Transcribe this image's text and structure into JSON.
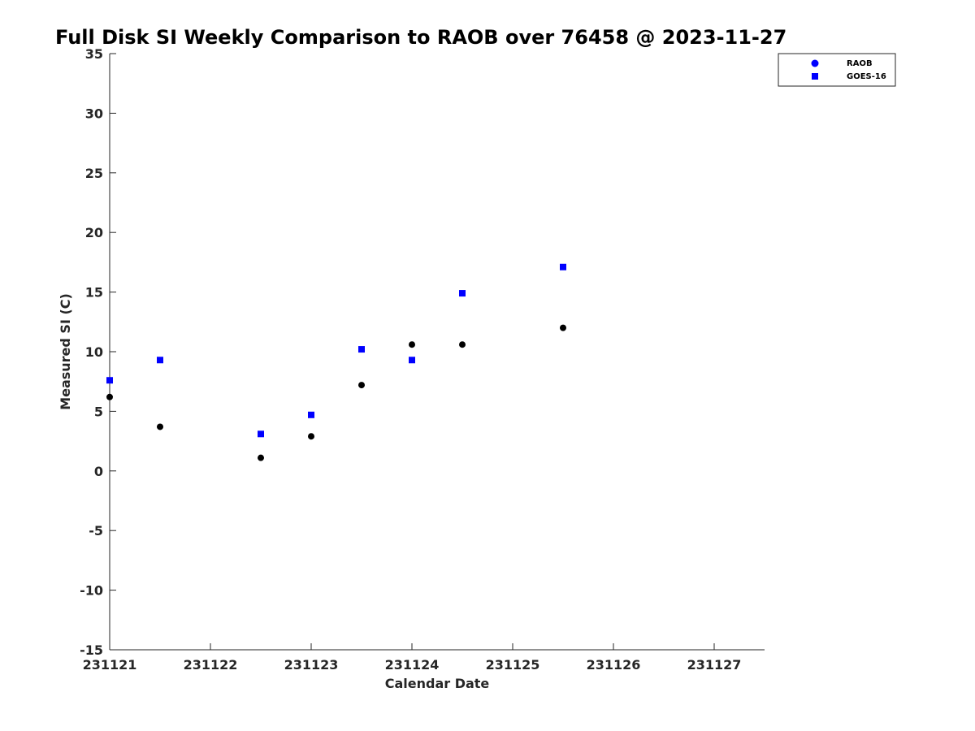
{
  "chart_data": {
    "type": "scatter",
    "title": "Full Disk SI Weekly Comparison to RAOB over 76458 @ 2023-11-27",
    "xlabel": "Calendar Date",
    "ylabel": "Measured SI (C)",
    "xlim": [
      "2023-11-21",
      "2023-11-27 12:00"
    ],
    "ylim": [
      -15,
      35
    ],
    "x_ticks": [
      "2023-11-21",
      "2023-11-22",
      "2023-11-23",
      "2023-11-24",
      "2023-11-25",
      "2023-11-26",
      "2023-11-27"
    ],
    "x_tick_labels": [
      "231121",
      "231122",
      "231123",
      "231124",
      "231125",
      "231126",
      "231127"
    ],
    "y_ticks": [
      -15,
      -10,
      -5,
      0,
      5,
      10,
      15,
      20,
      25,
      30,
      35
    ],
    "grid": false,
    "legend_position": "top-right",
    "legend": [
      {
        "label": "RAOB",
        "marker": "circle",
        "color": "#0000ff"
      },
      {
        "label": "GOES-16",
        "marker": "square",
        "color": "#0000ff"
      }
    ],
    "series": [
      {
        "name": "RAOB",
        "marker": "circle",
        "color": "#000000",
        "x": [
          "2023-11-21 00:00",
          "2023-11-21 12:00",
          "2023-11-22 12:00",
          "2023-11-23 00:00",
          "2023-11-23 12:00",
          "2023-11-24 00:00",
          "2023-11-24 12:00",
          "2023-11-25 12:00"
        ],
        "y": [
          6.2,
          3.7,
          1.1,
          2.9,
          7.2,
          10.6,
          10.6,
          12.0
        ]
      },
      {
        "name": "GOES-16",
        "marker": "square",
        "color": "#0000ff",
        "x": [
          "2023-11-21 00:00",
          "2023-11-21 12:00",
          "2023-11-22 12:00",
          "2023-11-23 00:00",
          "2023-11-23 12:00",
          "2023-11-24 00:00",
          "2023-11-24 12:00",
          "2023-11-25 12:00"
        ],
        "y": [
          7.6,
          9.3,
          3.1,
          4.7,
          10.2,
          9.3,
          14.9,
          17.1
        ]
      }
    ]
  }
}
